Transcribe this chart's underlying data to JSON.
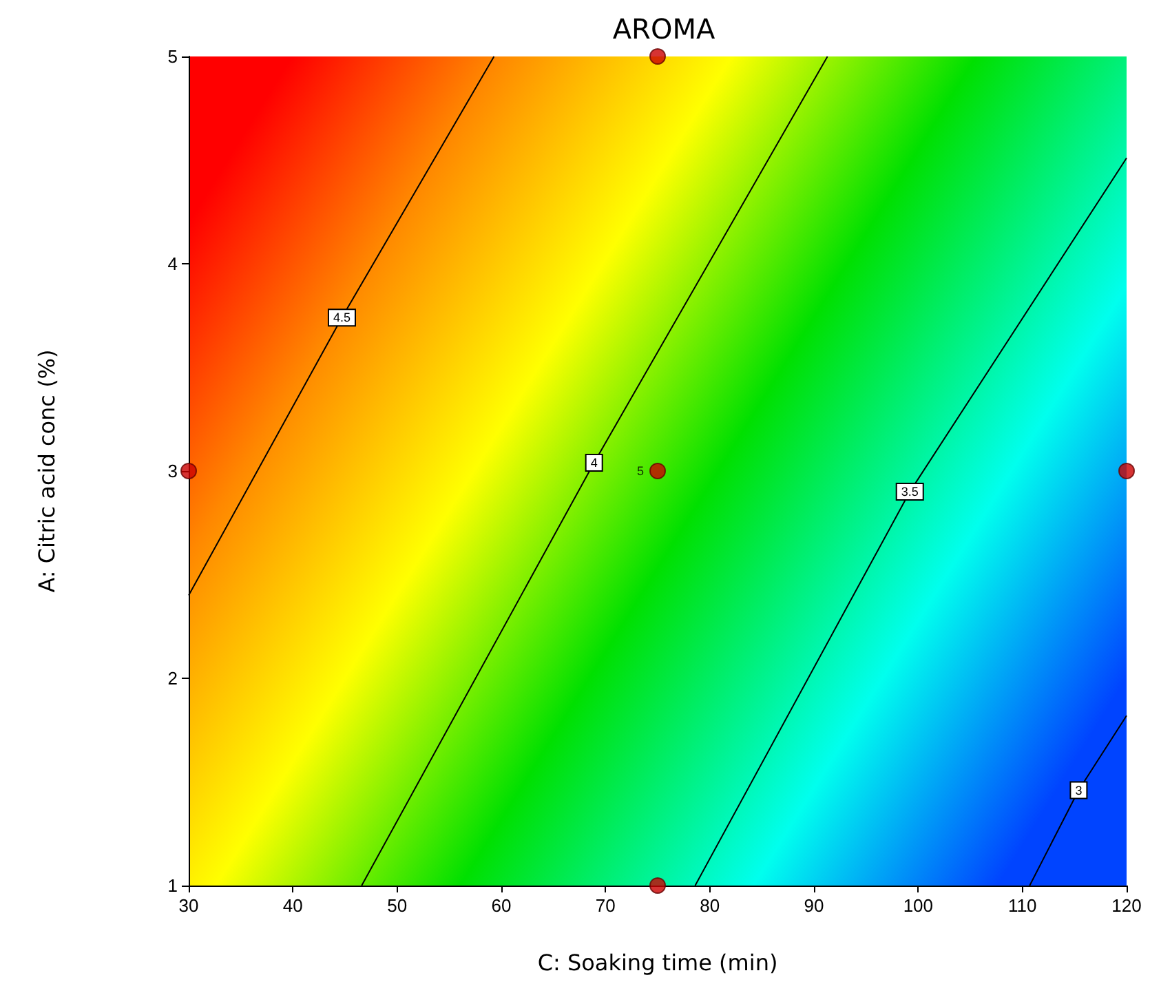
{
  "chart_data": {
    "type": "scatter",
    "title": "AROMA",
    "xlabel": "C: Soaking time (min)",
    "ylabel": "A: Citric acid conc (%)",
    "xlim": [
      30,
      120
    ],
    "xticks": [
      30,
      40,
      50,
      60,
      70,
      80,
      90,
      100,
      110,
      120
    ],
    "ylim": [
      1,
      5
    ],
    "yticks": [
      1,
      2,
      3,
      4,
      5
    ],
    "grid": false,
    "legend": false,
    "marker": "circle",
    "annotations": [
      {
        "text": "5",
        "x": 75,
        "y": 3
      }
    ],
    "series": [
      {
        "color": "#cc0000",
        "x": [
          75,
          30,
          75,
          120,
          75
        ],
        "values": [
          5,
          3,
          3,
          3,
          1
        ]
      },
      {
        "type": "line",
        "name": "4.5",
        "color": "#000000",
        "marker": "none",
        "x": [
          30,
          44.7,
          59.3
        ],
        "values": [
          2.4,
          3.74,
          5
        ]
      },
      {
        "type": "line",
        "name": "4",
        "color": "#000000",
        "marker": "none",
        "x": [
          46.6,
          68.9,
          91.3
        ],
        "values": [
          1,
          3.04,
          5
        ]
      },
      {
        "type": "line",
        "name": "3.5",
        "color": "#000000",
        "marker": "none",
        "x": [
          78.6,
          99.2,
          120
        ],
        "values": [
          1,
          2.9,
          4.51
        ]
      },
      {
        "type": "line",
        "name": "3",
        "color": "#000000",
        "marker": "none",
        "x": [
          110.7,
          115.4,
          120
        ],
        "values": [
          1,
          1.46,
          1.82
        ]
      }
    ]
  }
}
